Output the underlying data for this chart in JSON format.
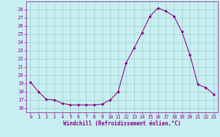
{
  "x": [
    0,
    1,
    2,
    3,
    4,
    5,
    6,
    7,
    8,
    9,
    10,
    11,
    12,
    13,
    14,
    15,
    16,
    17,
    18,
    19,
    20,
    21,
    22,
    23
  ],
  "y": [
    19.2,
    18.0,
    17.1,
    17.0,
    16.6,
    16.4,
    16.4,
    16.4,
    16.4,
    16.5,
    17.0,
    18.0,
    21.5,
    23.3,
    25.2,
    27.2,
    28.2,
    27.8,
    27.2,
    25.3,
    22.5,
    18.9,
    18.5,
    17.7
  ],
  "xlabel": "Windchill (Refroidissement éolien,°C)",
  "ylim": [
    15.5,
    29.0
  ],
  "xlim": [
    -0.5,
    23.5
  ],
  "yticks": [
    16,
    17,
    18,
    19,
    20,
    21,
    22,
    23,
    24,
    25,
    26,
    27,
    28
  ],
  "xticks": [
    0,
    1,
    2,
    3,
    4,
    5,
    6,
    7,
    8,
    9,
    10,
    11,
    12,
    13,
    14,
    15,
    16,
    17,
    18,
    19,
    20,
    21,
    22,
    23
  ],
  "line_color": "#880088",
  "bg_color": "#c8eef0",
  "grid_color": "#99cccc",
  "xlabel_color": "#880088",
  "tick_color": "#880088"
}
